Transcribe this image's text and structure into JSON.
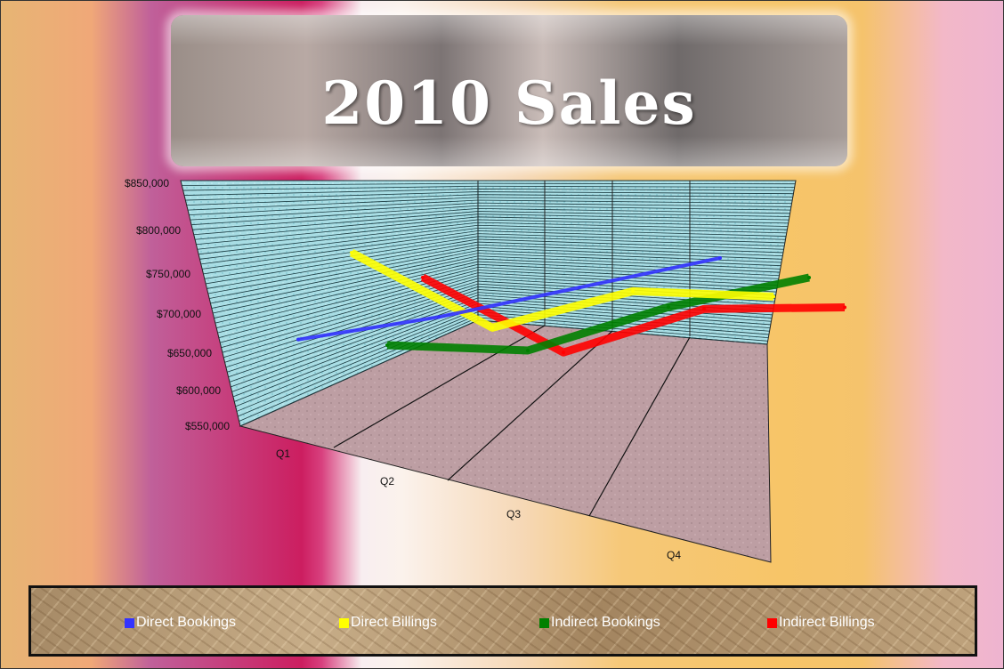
{
  "chart_data": {
    "type": "line",
    "title": "2010 Sales",
    "categories": [
      "Q1",
      "Q2",
      "Q3",
      "Q4"
    ],
    "y_ticks": [
      "$850,000",
      "$800,000",
      "$750,000",
      "$700,000",
      "$650,000",
      "$600,000",
      "$550,000"
    ],
    "ylim": [
      550000,
      850000
    ],
    "grid": true,
    "legend_position": "bottom",
    "series": [
      {
        "name": "Direct Bookings",
        "color": "#3333ff",
        "values": [
          650000,
          690000,
          740000,
          790000
        ]
      },
      {
        "name": "Direct Billings",
        "color": "#ffff00",
        "values": [
          790000,
          690000,
          750000,
          750000
        ]
      },
      {
        "name": "Indirect Bookings",
        "color": "#008000",
        "values": [
          670000,
          670000,
          740000,
          790000
        ]
      },
      {
        "name": "Indirect Billings",
        "color": "#ff0000",
        "values": [
          780000,
          680000,
          750000,
          760000
        ]
      }
    ]
  }
}
